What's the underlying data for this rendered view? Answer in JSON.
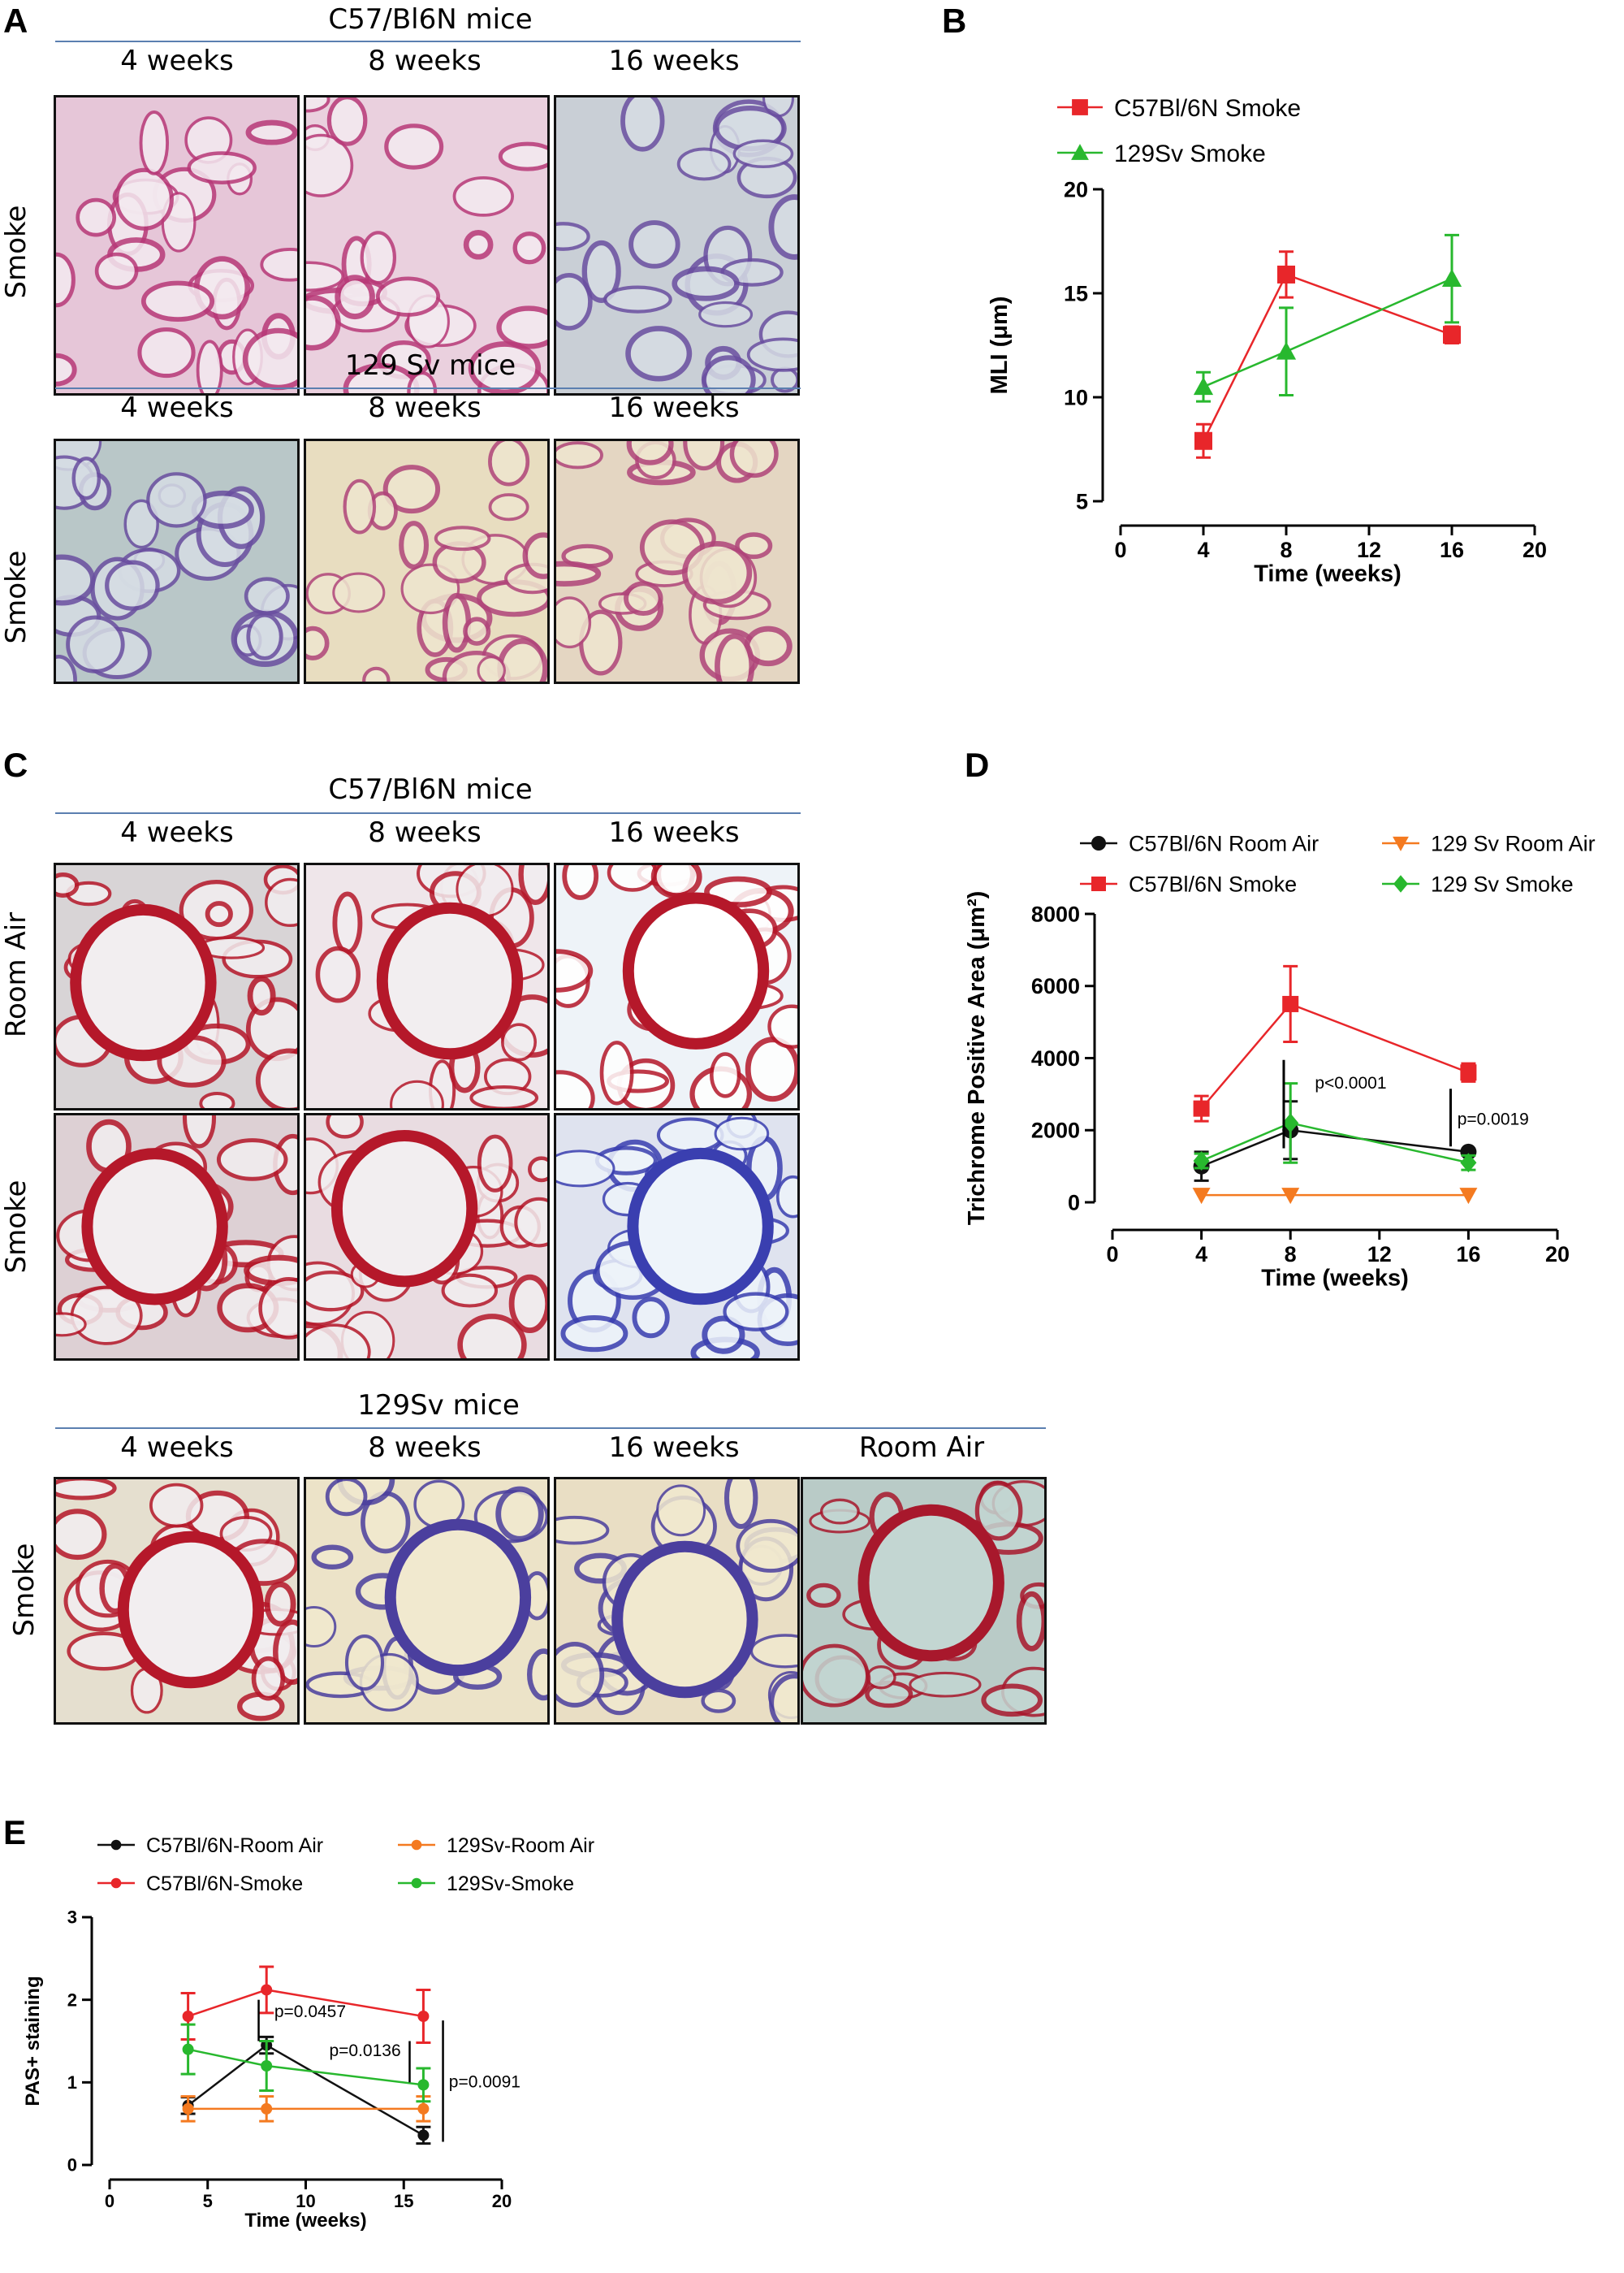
{
  "panels": {
    "A": {
      "label": "A",
      "group1": {
        "title": "C57/Bl6N mice",
        "weeks": [
          "4 weeks",
          "8 weeks",
          "16 weeks"
        ],
        "row_label": "Smoke"
      },
      "group2": {
        "title": "129 Sv mice",
        "weeks": [
          "4 weeks",
          "8 weeks",
          "16 weeks"
        ],
        "row_label": "Smoke"
      }
    },
    "C": {
      "label": "C",
      "group1": {
        "title": "C57/Bl6N mice",
        "weeks": [
          "4 weeks",
          "8 weeks",
          "16 weeks"
        ],
        "row_labels": [
          "Room Air",
          "Smoke"
        ]
      },
      "group2": {
        "title": "129Sv mice",
        "weeks": [
          "4 weeks",
          "8 weeks",
          "16 weeks",
          "Room Air"
        ],
        "row_label": "Smoke"
      }
    },
    "B": {
      "label": "B"
    },
    "D": {
      "label": "D"
    },
    "E": {
      "label": "E"
    }
  },
  "colors": {
    "red": "#e8262a",
    "green": "#28b82e",
    "black": "#111111",
    "orange": "#f47a20",
    "he_pink": "#b83a78",
    "he_purple": "#6a4fa0",
    "trichrome_red": "#b5182a",
    "trichrome_blue": "#3a3fb0"
  },
  "chart_data": [
    {
      "id": "B",
      "type": "line",
      "xlabel": "Time (weeks)",
      "ylabel": "MLI (μm)",
      "xlim": [
        0,
        20
      ],
      "ylim": [
        5,
        20
      ],
      "xticks": [
        0,
        4,
        8,
        12,
        16,
        20
      ],
      "yticks": [
        5,
        10,
        15,
        20
      ],
      "legend_placement": "top-left",
      "series": [
        {
          "name": "C57Bl/6N Smoke",
          "color": "#e8262a",
          "marker": "square",
          "x": [
            4,
            8,
            16
          ],
          "y": [
            7.9,
            15.9,
            13.0
          ],
          "err": [
            0.8,
            1.1,
            0.4
          ]
        },
        {
          "name": "129Sv Smoke",
          "color": "#28b82e",
          "marker": "triangle",
          "x": [
            4,
            8,
            16
          ],
          "y": [
            10.5,
            12.2,
            15.7
          ],
          "err": [
            0.7,
            2.1,
            2.1
          ]
        }
      ]
    },
    {
      "id": "D",
      "type": "line",
      "xlabel": "Time (weeks)",
      "ylabel": "Trichrome Positive Area (μm²)",
      "xlim": [
        0,
        20
      ],
      "ylim": [
        0,
        8000
      ],
      "xticks": [
        0,
        4,
        8,
        12,
        16,
        20
      ],
      "yticks": [
        0,
        2000,
        4000,
        6000,
        8000
      ],
      "legend_placement": "top",
      "series": [
        {
          "name": "C57Bl/6N Room Air",
          "color": "#111111",
          "marker": "circle",
          "x": [
            4,
            8,
            16
          ],
          "y": [
            1000,
            2000,
            1400
          ],
          "err": [
            400,
            800,
            0
          ]
        },
        {
          "name": "C57Bl/6N Smoke",
          "color": "#e8262a",
          "marker": "square",
          "x": [
            4,
            8,
            16
          ],
          "y": [
            2600,
            5500,
            3600
          ],
          "err": [
            350,
            1050,
            250
          ]
        },
        {
          "name": "129 Sv Room Air",
          "color": "#f47a20",
          "marker": "triangle-down",
          "x": [
            4,
            8,
            16
          ],
          "y": [
            200,
            200,
            200
          ],
          "err": [
            0,
            0,
            0
          ]
        },
        {
          "name": "129 Sv Smoke",
          "color": "#28b82e",
          "marker": "diamond",
          "x": [
            4,
            8,
            16
          ],
          "y": [
            1150,
            2200,
            1100
          ],
          "err": [
            200,
            1100,
            200
          ]
        }
      ],
      "annotations": [
        "p<0.0001",
        "p=0.0019"
      ]
    },
    {
      "id": "E",
      "type": "line",
      "xlabel": "Time (weeks)",
      "ylabel": "PAS+ staining",
      "xlim": [
        0,
        20
      ],
      "ylim": [
        0,
        3
      ],
      "xticks": [
        0,
        5,
        10,
        15,
        20
      ],
      "yticks": [
        0,
        1,
        2,
        3
      ],
      "legend_placement": "top",
      "series": [
        {
          "name": "C57Bl/6N-Room Air",
          "color": "#111111",
          "marker": "circle",
          "x": [
            4,
            8,
            16
          ],
          "y": [
            0.72,
            1.45,
            0.36
          ],
          "err": [
            0.1,
            0.1,
            0.1
          ]
        },
        {
          "name": "C57Bl/6N-Smoke",
          "color": "#e8262a",
          "marker": "circle",
          "x": [
            4,
            8,
            16
          ],
          "y": [
            1.8,
            2.12,
            1.8
          ],
          "err": [
            0.28,
            0.28,
            0.32
          ]
        },
        {
          "name": "129Sv-Room Air",
          "color": "#f47a20",
          "marker": "circle",
          "x": [
            4,
            8,
            16
          ],
          "y": [
            0.68,
            0.68,
            0.68
          ],
          "err": [
            0.15,
            0.15,
            0.15
          ]
        },
        {
          "name": "129Sv-Smoke",
          "color": "#28b82e",
          "marker": "circle",
          "x": [
            4,
            8,
            16
          ],
          "y": [
            1.4,
            1.2,
            0.97
          ],
          "err": [
            0.3,
            0.3,
            0.2
          ]
        }
      ],
      "annotations": [
        "p=0.0457",
        "p=0.0136",
        "p=0.0091"
      ]
    }
  ]
}
